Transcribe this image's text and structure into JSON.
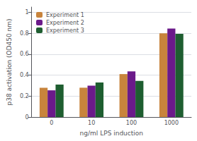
{
  "chart_data": {
    "type": "bar",
    "categories": [
      "0",
      "10",
      "100",
      "1000"
    ],
    "series": [
      {
        "name": "Experiment 1",
        "color": "#c8843c",
        "values": [
          0.28,
          0.28,
          0.41,
          0.8
        ]
      },
      {
        "name": "Experiment 2",
        "color": "#6b1a8a",
        "values": [
          0.255,
          0.3,
          0.435,
          0.845
        ]
      },
      {
        "name": "Experiment 3",
        "color": "#1e5e30",
        "values": [
          0.31,
          0.33,
          0.345,
          0.795
        ]
      }
    ],
    "xlabel": "ng/ml LPS induction",
    "ylabel": "p38 activation (OD450 nm)",
    "ylim": [
      0,
      1.05
    ],
    "yticks": [
      0,
      0.2,
      0.4,
      0.6,
      0.8,
      1
    ],
    "grid": true,
    "legend": "upper left"
  }
}
